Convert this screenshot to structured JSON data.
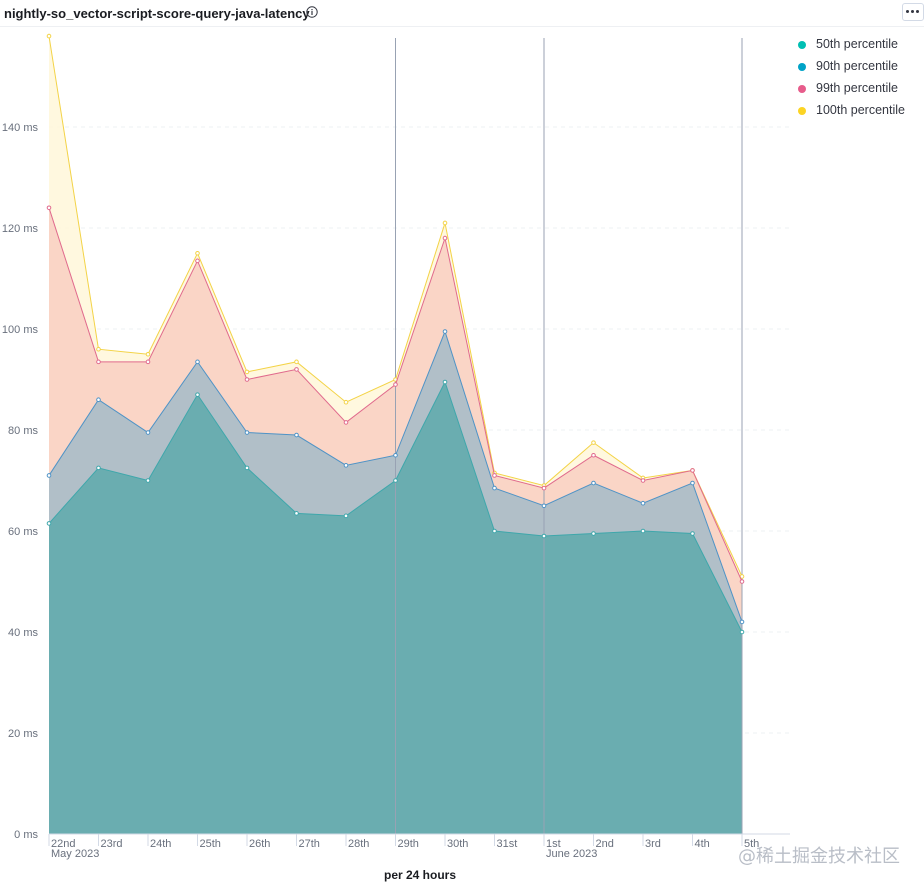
{
  "panel": {
    "title": "nightly-so_vector-script-score-query-java-latency",
    "info_icon": "info-icon",
    "menu_icon": "ellipsis-icon"
  },
  "chart_data": {
    "type": "area",
    "x_axis_title": "per 24 hours",
    "x": [
      "22nd",
      "23rd",
      "24th",
      "25th",
      "26th",
      "27th",
      "28th",
      "29th",
      "30th",
      "31st",
      "1st",
      "2nd",
      "3rd",
      "4th",
      "5th"
    ],
    "x_group_labels": [
      {
        "at": "22nd",
        "label": "May 2023"
      },
      {
        "at": "1st",
        "label": "June 2023"
      }
    ],
    "y_ticks": [
      "0 ms",
      "20 ms",
      "40 ms",
      "60 ms",
      "80 ms",
      "100 ms",
      "120 ms",
      "140 ms"
    ],
    "y_unit": "ms",
    "ylim": [
      0,
      158
    ],
    "grid": true,
    "legend_position": "top-right",
    "marker_lines_at": [
      "29th",
      "1st",
      "5th"
    ],
    "series": [
      {
        "name": "50th percentile",
        "color": "#54b399",
        "values": [
          61.5,
          72.5,
          70,
          87,
          72.5,
          63.5,
          63,
          70,
          89.5,
          60,
          59,
          59.5,
          60,
          59.5,
          40
        ]
      },
      {
        "name": "90th percentile",
        "color": "#6092c0",
        "values": [
          71,
          86,
          79.5,
          93.5,
          79.5,
          79,
          73,
          75,
          99.5,
          68.5,
          65,
          69.5,
          65.5,
          69.5,
          42
        ]
      },
      {
        "name": "99th percentile",
        "color": "#d36086",
        "values": [
          124,
          93.5,
          93.5,
          113.5,
          90,
          92,
          81.5,
          89,
          118,
          71,
          68.5,
          75,
          70,
          72,
          50
        ]
      },
      {
        "name": "100th percentile",
        "color": "#e7d133",
        "values": [
          158,
          96,
          95,
          115,
          91.5,
          93.5,
          85.5,
          90,
          121,
          71.5,
          69,
          77.5,
          70.5,
          72,
          51
        ]
      }
    ]
  },
  "legend": {
    "items": [
      {
        "label": "50th percentile",
        "color": "#00bfb3"
      },
      {
        "label": "90th percentile",
        "color": "#00a3c7"
      },
      {
        "label": "99th percentile",
        "color": "#e75c8b"
      },
      {
        "label": "100th percentile",
        "color": "#fcd424"
      }
    ]
  },
  "watermark": "@稀土掘金技术社区"
}
